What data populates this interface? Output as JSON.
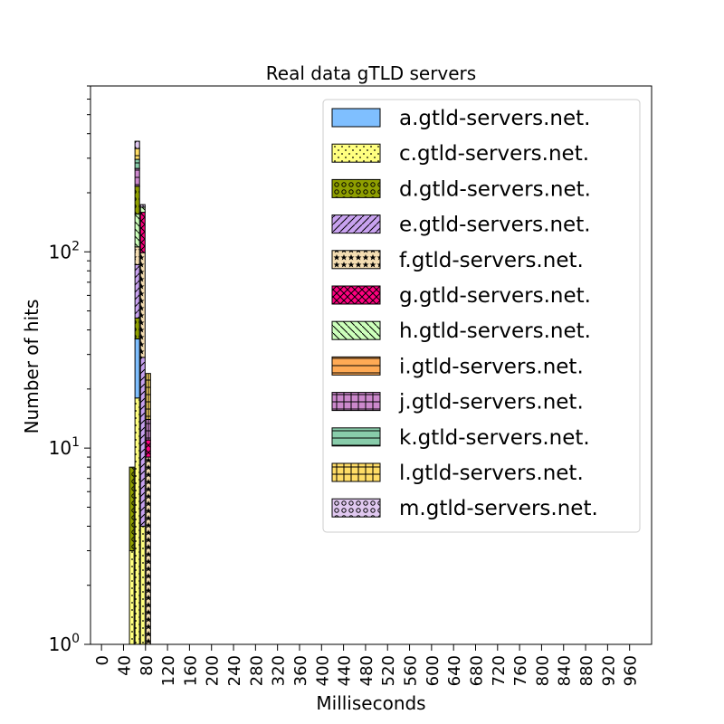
{
  "chart_data": {
    "type": "bar",
    "stacked": true,
    "title": "Real data gTLD servers",
    "xlabel": "Milliseconds",
    "ylabel": "Number of hits",
    "yscale": "log",
    "ylim": [
      1,
      700
    ],
    "xlim": [
      -20,
      1000
    ],
    "bin_width": 10,
    "grid": false,
    "legend_position": "top-right",
    "yticks": [
      {
        "value": 1,
        "base": "10",
        "exp": "0"
      },
      {
        "value": 10,
        "base": "10",
        "exp": "1"
      },
      {
        "value": 100,
        "base": "10",
        "exp": "2"
      }
    ],
    "xticks": [
      "0",
      "40",
      "80",
      "120",
      "160",
      "200",
      "240",
      "280",
      "320",
      "360",
      "400",
      "440",
      "480",
      "520",
      "560",
      "600",
      "640",
      "680",
      "720",
      "760",
      "800",
      "840",
      "880",
      "920",
      "960"
    ],
    "bins": [
      50,
      60,
      70,
      80
    ],
    "series": [
      {
        "name": "c.gtld-servers.net.",
        "color": "#ffff80",
        "pattern": "dots",
        "values": [
          3,
          18,
          4,
          1
        ]
      },
      {
        "name": "a.gtld-servers.net.",
        "color": "#7fbfff",
        "pattern": "none",
        "values": [
          0,
          18,
          0,
          0
        ]
      },
      {
        "name": "d.gtld-servers.net.",
        "color": "#8f9f00",
        "pattern": "circles",
        "values": [
          5,
          10,
          0,
          0
        ]
      },
      {
        "name": "e.gtld-servers.net.",
        "color": "#c8a2ef",
        "pattern": "slash",
        "values": [
          0,
          40,
          25,
          0
        ]
      },
      {
        "name": "f.gtld-servers.net.",
        "color": "#f5deb3",
        "pattern": "stars",
        "values": [
          0,
          20,
          70,
          8
        ]
      },
      {
        "name": "h.gtld-servers.net.",
        "color": "#ccffbb",
        "pattern": "backslash",
        "values": [
          0,
          50,
          0,
          0
        ]
      },
      {
        "name": "g.gtld-servers.net.",
        "color": "#ff0080",
        "pattern": "cross",
        "values": [
          0,
          0,
          60,
          2
        ]
      },
      {
        "name": "i.gtld-servers.net.",
        "color": "#ffaa55",
        "pattern": "hlines",
        "values": [
          0,
          0,
          0,
          0
        ]
      },
      {
        "name": "j.gtld-servers.net.",
        "color": "#cc88cc",
        "pattern": "grid",
        "values": [
          0,
          0,
          0,
          3
        ]
      },
      {
        "name": "k.gtld-servers.net.",
        "color": "#88ccaa",
        "pattern": "hlines",
        "values": [
          0,
          0,
          0,
          0
        ]
      },
      {
        "name": "l.gtld-servers.net.",
        "color": "#ffdd66",
        "pattern": "grid",
        "values": [
          0,
          0,
          0,
          0
        ]
      },
      {
        "name": "m.gtld-servers.net.",
        "color": "#e0c8f0",
        "pattern": "circles",
        "values": [
          0,
          0,
          0,
          0
        ]
      }
    ],
    "extra_bars": [
      {
        "x": 60,
        "segments": [
          {
            "name": "d.gtld-servers.net.",
            "value": 60
          },
          {
            "name": "j.gtld-servers.net.",
            "value": 50
          },
          {
            "name": "k.gtld-servers.net.",
            "value": 30
          },
          {
            "name": "l.gtld-servers.net.",
            "value": 40
          },
          {
            "name": "m.gtld-servers.net.",
            "value": 30
          }
        ]
      },
      {
        "x": 70,
        "segments": [
          {
            "name": "h.gtld-servers.net.",
            "value": 10
          },
          {
            "name": "m.gtld-servers.net.",
            "value": 5
          }
        ]
      },
      {
        "x": 80,
        "segments": [
          {
            "name": "l.gtld-servers.net.",
            "value": 10
          }
        ]
      }
    ]
  },
  "legend": [
    {
      "label": "a.gtld-servers.net.",
      "color": "#7fbfff",
      "pattern": "none"
    },
    {
      "label": "c.gtld-servers.net.",
      "color": "#ffff80",
      "pattern": "dots"
    },
    {
      "label": "d.gtld-servers.net.",
      "color": "#8f9f00",
      "pattern": "circles"
    },
    {
      "label": "e.gtld-servers.net.",
      "color": "#c8a2ef",
      "pattern": "slash"
    },
    {
      "label": "f.gtld-servers.net.",
      "color": "#f5deb3",
      "pattern": "stars"
    },
    {
      "label": "g.gtld-servers.net.",
      "color": "#ff0080",
      "pattern": "cross"
    },
    {
      "label": "h.gtld-servers.net.",
      "color": "#ccffbb",
      "pattern": "backslash"
    },
    {
      "label": "i.gtld-servers.net.",
      "color": "#ffaa55",
      "pattern": "hlines"
    },
    {
      "label": "j.gtld-servers.net.",
      "color": "#cc88cc",
      "pattern": "grid"
    },
    {
      "label": "k.gtld-servers.net.",
      "color": "#88ccaa",
      "pattern": "hlines"
    },
    {
      "label": "l.gtld-servers.net.",
      "color": "#ffdd66",
      "pattern": "grid"
    },
    {
      "label": "m.gtld-servers.net.",
      "color": "#e0c8f0",
      "pattern": "circles"
    }
  ]
}
